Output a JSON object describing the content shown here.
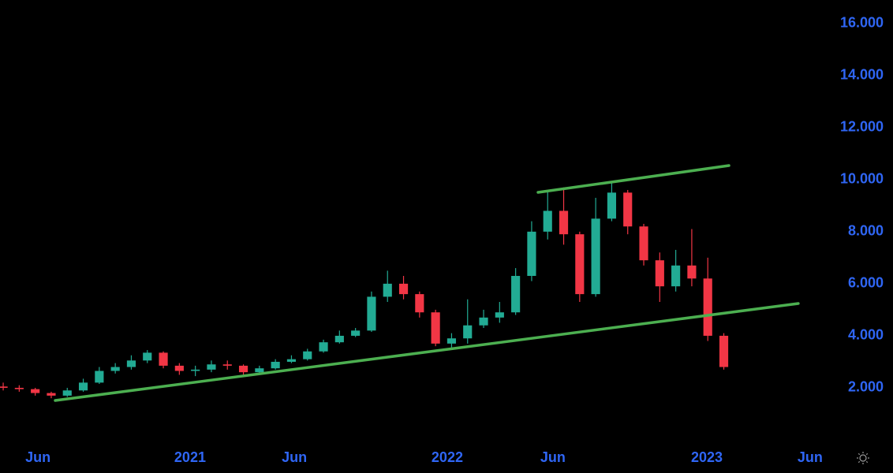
{
  "chart_data": {
    "type": "candlestick",
    "up_color": "#22ab94",
    "down_color": "#f23645",
    "x": [
      0,
      1,
      2,
      3,
      4,
      5,
      6,
      7,
      8,
      9,
      10,
      11,
      12,
      13,
      14,
      15,
      16,
      17,
      18,
      19,
      20,
      21,
      22,
      23,
      24,
      25,
      26,
      27,
      28,
      29,
      30,
      31,
      32,
      33,
      34,
      35,
      36,
      37,
      38,
      39,
      40,
      41,
      42,
      43,
      44,
      45
    ],
    "open": [
      2050,
      2000,
      1950,
      1800,
      1700,
      1900,
      2200,
      2650,
      2800,
      3050,
      3350,
      2850,
      2650,
      2700,
      2900,
      2850,
      2600,
      2750,
      3000,
      3100,
      3400,
      3750,
      4000,
      4200,
      5500,
      6000,
      5600,
      4900,
      3700,
      3900,
      4400,
      4700,
      4900,
      6300,
      8000,
      8800,
      7900,
      5600,
      8500,
      9500,
      8200,
      6900,
      5900,
      6700,
      6200,
      4000
    ],
    "high": [
      2200,
      2100,
      2000,
      1850,
      2000,
      2350,
      2800,
      2950,
      3250,
      3450,
      3400,
      2950,
      2850,
      3050,
      3050,
      2900,
      2850,
      3100,
      3250,
      3500,
      3850,
      4200,
      4300,
      5700,
      6500,
      6300,
      5700,
      5000,
      4100,
      5400,
      5000,
      5300,
      6600,
      8400,
      9600,
      9700,
      8000,
      9300,
      9900,
      9600,
      8300,
      7200,
      7300,
      8100,
      7000,
      4100
    ],
    "low": [
      1900,
      1850,
      1700,
      1600,
      1650,
      1850,
      2150,
      2550,
      2700,
      2950,
      2750,
      2500,
      2450,
      2600,
      2700,
      2500,
      2500,
      2700,
      2950,
      3050,
      3350,
      3700,
      3950,
      4150,
      5300,
      5400,
      4700,
      3600,
      3500,
      3700,
      4300,
      4500,
      4800,
      6100,
      7700,
      7500,
      5300,
      5500,
      8400,
      7900,
      6700,
      5300,
      5700,
      5900,
      3800,
      2700
    ],
    "close": [
      2000,
      1950,
      1800,
      1700,
      1900,
      2200,
      2650,
      2800,
      3050,
      3350,
      2850,
      2650,
      2700,
      2900,
      2850,
      2600,
      2750,
      3000,
      3100,
      3400,
      3750,
      4000,
      4200,
      5500,
      6000,
      5600,
      4900,
      3700,
      3900,
      4400,
      4700,
      4900,
      6300,
      8000,
      8800,
      7900,
      5600,
      8500,
      9500,
      8200,
      6900,
      5900,
      6700,
      6200,
      4000,
      2800
    ],
    "xlim": [
      -0.2,
      51.28
    ],
    "ylim": [
      0,
      16900
    ],
    "xticks": [
      {
        "value": 2.17,
        "label": "Jun"
      },
      {
        "value": 11.67,
        "label": "2021"
      },
      {
        "value": 18.18,
        "label": "Jun"
      },
      {
        "value": 27.73,
        "label": "2022"
      },
      {
        "value": 34.33,
        "label": "Jun"
      },
      {
        "value": 43.94,
        "label": "2023"
      },
      {
        "value": 50.39,
        "label": "Jun"
      }
    ],
    "yticks": [
      {
        "value": 2000,
        "label": "2.000"
      },
      {
        "value": 4000,
        "label": "4.000"
      },
      {
        "value": 6000,
        "label": "6.000"
      },
      {
        "value": 8000,
        "label": "8.000"
      },
      {
        "value": 10000,
        "label": "10.000"
      },
      {
        "value": 12000,
        "label": "12.000"
      },
      {
        "value": 14000,
        "label": "14.000"
      },
      {
        "value": 16000,
        "label": "16.000"
      }
    ],
    "trendlines": [
      {
        "color": "#4caf50",
        "x": [
          3.25,
          49.65
        ],
        "y": [
          1514,
          5239
        ]
      },
      {
        "color": "#4caf50",
        "x": [
          33.4,
          45.32
        ],
        "y": [
          9509,
          10539
        ]
      }
    ]
  }
}
